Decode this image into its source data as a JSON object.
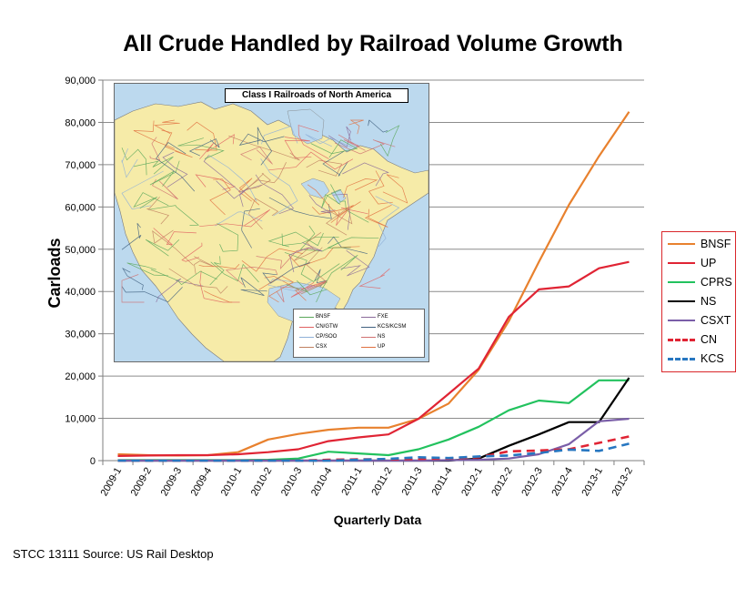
{
  "chart_data": {
    "type": "line",
    "title": "All Crude Handled by Railroad Volume Growth",
    "xlabel": "Quarterly Data",
    "ylabel": "Carloads",
    "ylim": [
      0,
      90000
    ],
    "y_ticks": [
      "0",
      "10,000",
      "20,000",
      "30,000",
      "40,000",
      "50,000",
      "60,000",
      "70,000",
      "80,000",
      "90,000"
    ],
    "categories": [
      "2009-1",
      "2009-2",
      "2009-3",
      "2009-4",
      "2010-1",
      "2010-2",
      "2010-3",
      "2010-4",
      "2011-1",
      "2011-2",
      "2011-3",
      "2011-4",
      "2012-1",
      "2012-2",
      "2012-3",
      "2012-4",
      "2013-1",
      "2013-2"
    ],
    "grid": "horizontal",
    "legend_position": "right",
    "series": [
      {
        "name": "BNSF",
        "color": "#e8812e",
        "dash": "solid",
        "values": [
          1500,
          1300,
          1200,
          1300,
          2000,
          5000,
          6300,
          7300,
          7800,
          7800,
          9900,
          13500,
          21500,
          33000,
          47000,
          60500,
          72000,
          82500
        ]
      },
      {
        "name": "UP",
        "color": "#e02434",
        "dash": "solid",
        "values": [
          1100,
          1200,
          1300,
          1300,
          1500,
          2000,
          2700,
          4600,
          5500,
          6200,
          9900,
          15800,
          21800,
          34000,
          40500,
          41200,
          45500,
          47000
        ]
      },
      {
        "name": "CPRS",
        "color": "#22c25e",
        "dash": "solid",
        "values": [
          100,
          100,
          100,
          100,
          100,
          200,
          500,
          2100,
          1700,
          1300,
          2700,
          5000,
          8000,
          11900,
          14200,
          13600,
          19000,
          19000
        ]
      },
      {
        "name": "NS",
        "color": "#000000",
        "dash": "solid",
        "values": [
          0,
          0,
          0,
          0,
          0,
          0,
          0,
          0,
          0,
          0,
          0,
          0,
          500,
          3500,
          6200,
          9100,
          9100,
          19600
        ]
      },
      {
        "name": "CSXT",
        "color": "#7a5ea8",
        "dash": "solid",
        "values": [
          0,
          0,
          0,
          0,
          0,
          0,
          0,
          0,
          0,
          0,
          0,
          100,
          200,
          500,
          1500,
          3900,
          9300,
          9900
        ]
      },
      {
        "name": "CN",
        "color": "#e02434",
        "dash": "dashed",
        "values": [
          0,
          0,
          0,
          0,
          0,
          0,
          0,
          200,
          300,
          300,
          400,
          500,
          800,
          2200,
          2400,
          2700,
          4200,
          5700
        ]
      },
      {
        "name": "KCS",
        "color": "#2777c1",
        "dash": "dashed",
        "values": [
          0,
          0,
          0,
          0,
          0,
          0,
          0,
          0,
          200,
          400,
          800,
          600,
          1000,
          1200,
          1800,
          2600,
          2300,
          4000
        ]
      }
    ]
  },
  "inset_map": {
    "title": "Class I Railroads of North America",
    "legend_col1": [
      "BNSF",
      "CN/GTW",
      "CP/SOO",
      "CSX"
    ],
    "legend_col2": [
      "FXE",
      "KCS/KCSM",
      "NS",
      "UP"
    ],
    "legend_colors_col1": [
      "#5aa85a",
      "#e06060",
      "#8fb0d8",
      "#c08060"
    ],
    "legend_colors_col2": [
      "#8a6a9a",
      "#406080",
      "#d07070",
      "#e07040"
    ],
    "land_color": "#f6eba8",
    "water_color": "#bcd9ee"
  },
  "footnote": "STCC 13111  Source: US Rail Desktop"
}
